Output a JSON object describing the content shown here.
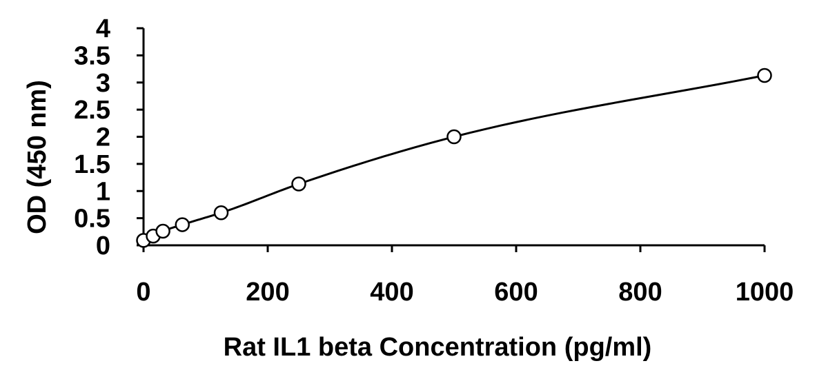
{
  "chart_data": {
    "type": "scatter",
    "title": "",
    "xlabel": "Rat IL1 beta Concentration (pg/ml)",
    "ylabel": "OD (450 nm)",
    "xlim": [
      0,
      1000
    ],
    "ylim": [
      0,
      4
    ],
    "x_ticks": [
      "0",
      "200",
      "400",
      "600",
      "800",
      "1000"
    ],
    "y_ticks": [
      "0",
      "0.5",
      "1",
      "1.5",
      "2",
      "2.5",
      "3",
      "3.5",
      "4"
    ],
    "grid": false,
    "legend": "none",
    "colors": {
      "axis": "#000000",
      "marker": "#000000",
      "curve": "#000000"
    },
    "series": [
      {
        "marker": "open-circle",
        "fit_line": "smooth",
        "x": [
          0,
          15.6,
          31.25,
          62.5,
          125,
          250,
          500,
          1000
        ],
        "y": [
          0.09,
          0.17,
          0.26,
          0.38,
          0.6,
          1.13,
          2.0,
          3.13
        ]
      }
    ]
  }
}
